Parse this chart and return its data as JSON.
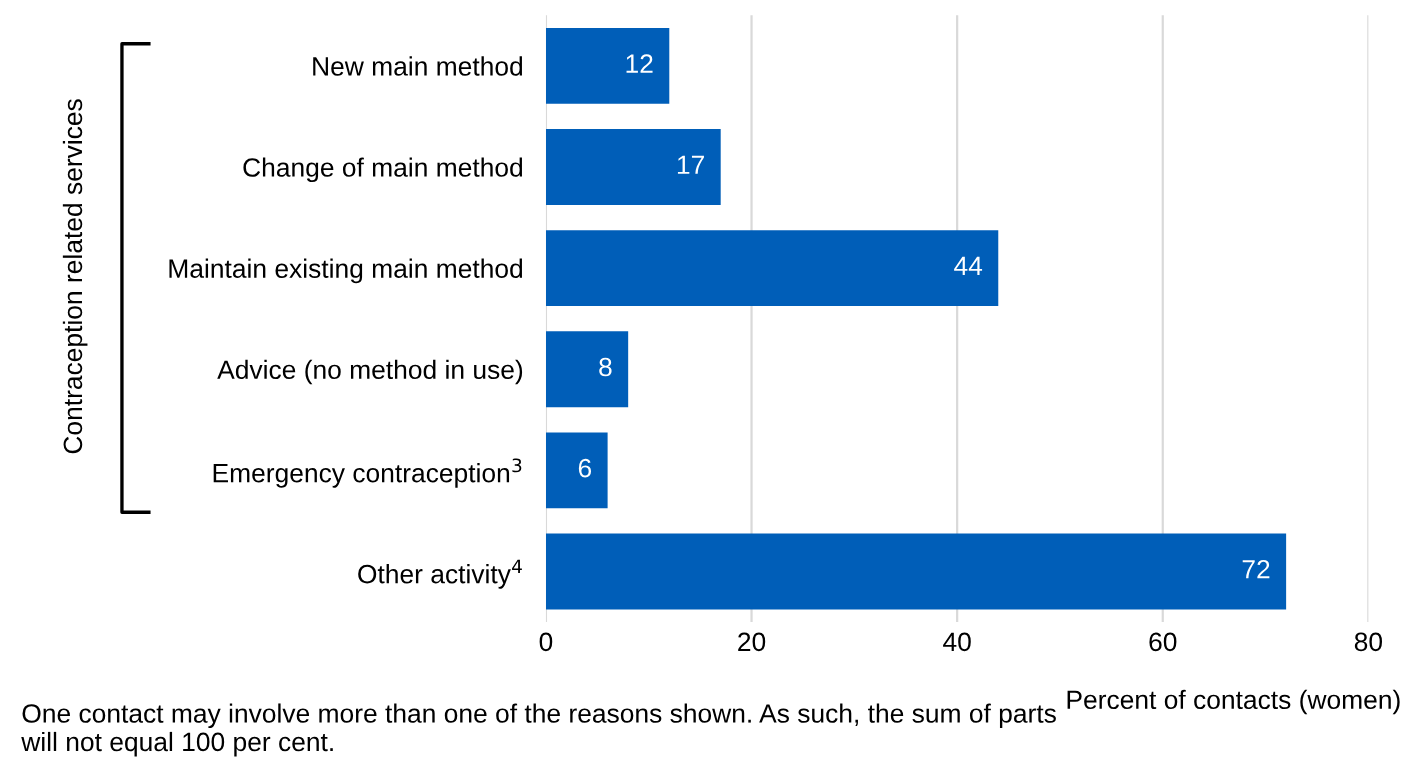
{
  "chart_data": {
    "type": "bar",
    "orientation": "horizontal",
    "categories": [
      "New main method",
      "Change of main method",
      "Maintain existing main method",
      "Advice (no method in use)",
      "Emergency contraception$^{3}$",
      "Other activity$^{4}$"
    ],
    "values": [
      12,
      17,
      44,
      8,
      6,
      72
    ],
    "color": "#005eb8",
    "data_labels": true,
    "xlim": [
      0,
      80
    ],
    "xticks": [
      0,
      20,
      40,
      60,
      80
    ],
    "grid": "x",
    "xlabel": "Percent of contacts (women)",
    "annotations": [
      "Contraception related services",
      "One contact may involve more than one of the reasons shown. As such, the sum of parts will not equal 100 per cent."
    ]
  }
}
